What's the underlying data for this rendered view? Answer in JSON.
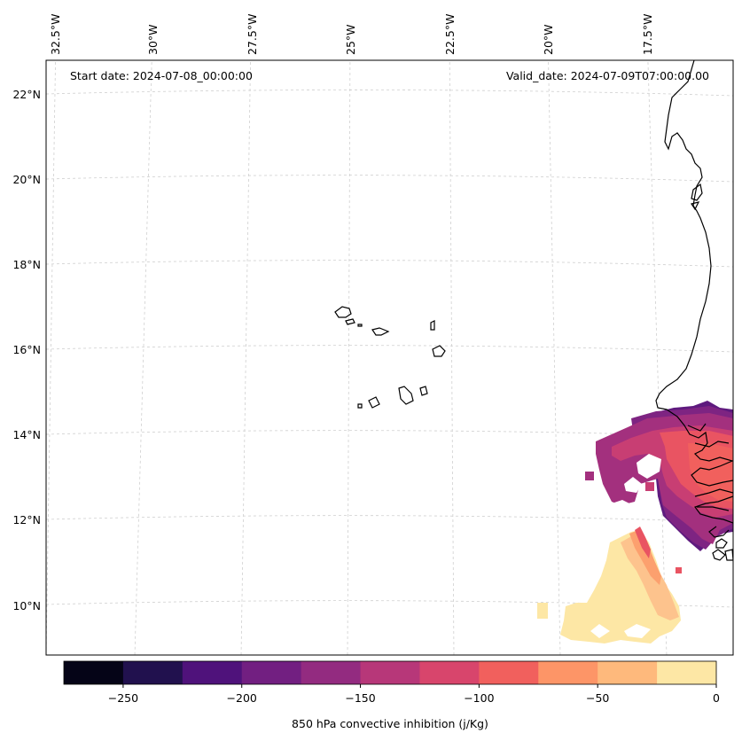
{
  "header": {
    "start_date": "Start date: 2024-07-08_00:00:00",
    "valid_date": "Valid_date: 2024-07-09T07:00:00.00"
  },
  "lon_labels": [
    "32.5°W",
    "30°W",
    "27.5°W",
    "25°W",
    "22.5°W",
    "20°W",
    "17.5°W"
  ],
  "lat_labels": [
    "22°N",
    "20°N",
    "18°N",
    "16°N",
    "14°N",
    "12°N",
    "10°N"
  ],
  "colorbar": {
    "label": "850 hPa convective inhibition (j/Kg)",
    "ticks": [
      "−250",
      "−200",
      "−150",
      "−100",
      "−50",
      "0"
    ],
    "tick_values": [
      -250,
      -200,
      -150,
      -100,
      -50,
      0
    ],
    "range": [
      -275,
      0
    ],
    "colors": [
      "#050417",
      "#21114e",
      "#4f127b",
      "#721f81",
      "#932b80",
      "#b73779",
      "#d8456c",
      "#f1605d",
      "#fd9567",
      "#feb97c",
      "#fde7a5"
    ]
  },
  "colors": {
    "violet_dark": "#5e1a7e",
    "purple": "#7e2482",
    "magenta": "#a3307e",
    "rose": "#c83e73",
    "salmon": "#e95462",
    "orange_light": "#fca06e",
    "peach": "#fdc38d",
    "cream": "#fde7a5"
  }
}
